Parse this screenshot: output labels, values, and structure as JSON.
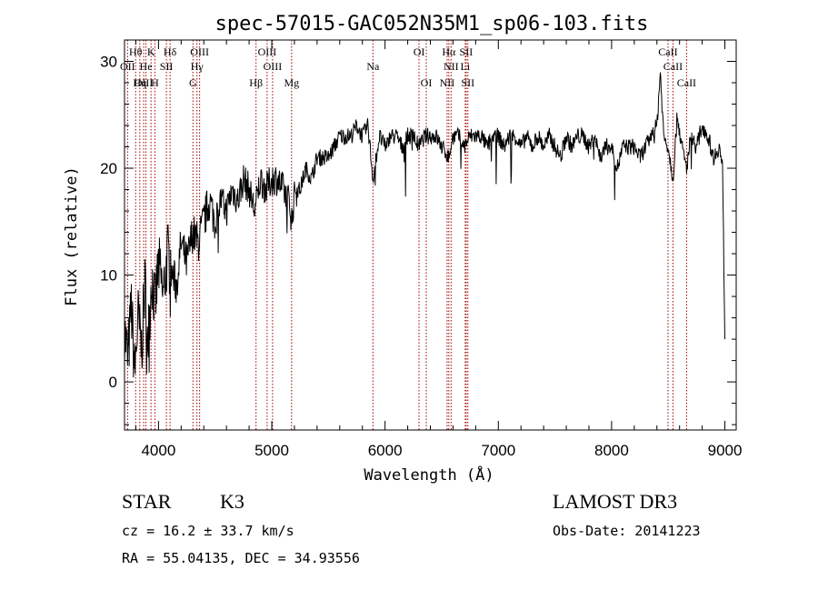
{
  "chart_data": {
    "type": "line",
    "title": "spec-57015-GAC052N35M1_sp06-103.fits",
    "xlabel": "Wavelength (Å)",
    "ylabel": "Flux (relative)",
    "xlim": [
      3700,
      9100
    ],
    "ylim": [
      -4.5,
      32
    ],
    "xticks": [
      4000,
      5000,
      6000,
      7000,
      8000,
      9000
    ],
    "yticks": [
      0,
      10,
      20,
      30
    ],
    "series": [
      {
        "name": "spectrum",
        "x": [
          3700,
          3730,
          3760,
          3790,
          3820,
          3850,
          3880,
          3910,
          3940,
          3970,
          4000,
          4040,
          4080,
          4120,
          4160,
          4200,
          4250,
          4300,
          4350,
          4400,
          4450,
          4500,
          4550,
          4600,
          4650,
          4700,
          4750,
          4800,
          4850,
          4900,
          4950,
          5000,
          5050,
          5100,
          5150,
          5180,
          5200,
          5250,
          5300,
          5350,
          5400,
          5450,
          5500,
          5550,
          5600,
          5650,
          5700,
          5750,
          5800,
          5850,
          5893,
          5950,
          6000,
          6050,
          6100,
          6150,
          6200,
          6250,
          6300,
          6350,
          6400,
          6450,
          6500,
          6563,
          6600,
          6650,
          6700,
          6750,
          6800,
          6850,
          6900,
          6950,
          7000,
          7050,
          7100,
          7150,
          7200,
          7250,
          7300,
          7350,
          7400,
          7450,
          7500,
          7550,
          7600,
          7650,
          7700,
          7750,
          7800,
          7850,
          7900,
          7950,
          8000,
          8050,
          8100,
          8150,
          8200,
          8250,
          8300,
          8350,
          8400,
          8430,
          8460,
          8500,
          8542,
          8580,
          8620,
          8662,
          8700,
          8750,
          8800,
          8850,
          8900,
          8950,
          8980,
          9000
        ],
        "y": [
          5,
          2,
          7,
          1,
          6,
          3,
          9,
          4,
          10,
          7,
          11,
          8,
          12,
          10,
          9,
          13,
          11,
          14,
          13,
          15,
          17,
          15,
          17,
          16,
          18,
          17,
          19,
          18,
          16,
          19,
          18,
          19,
          19,
          18,
          17,
          15,
          18,
          18,
          20,
          19,
          21,
          21,
          21,
          22,
          23,
          23,
          23,
          24,
          23,
          24,
          19,
          23,
          22,
          23,
          23,
          22,
          23,
          23,
          22,
          23,
          23,
          23,
          22,
          21,
          23,
          23,
          22,
          23,
          23,
          23,
          22,
          23,
          23,
          22,
          23,
          23,
          22,
          23,
          22,
          23,
          22,
          23,
          22,
          21,
          23,
          22,
          23,
          23,
          22,
          23,
          21,
          22,
          22,
          20,
          22,
          22,
          22,
          21,
          22,
          23,
          24,
          29,
          23,
          22,
          19,
          25,
          22,
          20,
          23,
          22,
          24,
          23,
          21,
          22,
          20,
          4
        ]
      }
    ],
    "lines": [
      {
        "name": "Hθ",
        "wl": 3798,
        "row": 0
      },
      {
        "name": "OII",
        "wl": 3727,
        "row": 1
      },
      {
        "name": "OIII",
        "wl": 3869,
        "row": 2
      },
      {
        "name": "Hη",
        "wl": 3835,
        "row": 2
      },
      {
        "name": "He",
        "wl": 3889,
        "row": 1
      },
      {
        "name": "K",
        "wl": 3934,
        "row": 0
      },
      {
        "name": "H",
        "wl": 3968,
        "row": 2
      },
      {
        "name": "SII",
        "wl": 4070,
        "row": 1
      },
      {
        "name": "Hδ",
        "wl": 4102,
        "row": 0
      },
      {
        "name": "OIII",
        "wl": 4363,
        "row": 0
      },
      {
        "name": "Hγ",
        "wl": 4340,
        "row": 1
      },
      {
        "name": "G",
        "wl": 4304,
        "row": 2
      },
      {
        "name": "Hβ",
        "wl": 4861,
        "row": 2
      },
      {
        "name": "OIII",
        "wl": 4959,
        "row": 0
      },
      {
        "name": "OIII",
        "wl": 5007,
        "row": 1
      },
      {
        "name": "Mg",
        "wl": 5175,
        "row": 2
      },
      {
        "name": "Na",
        "wl": 5893,
        "row": 1
      },
      {
        "name": "OI",
        "wl": 6300,
        "row": 0
      },
      {
        "name": "OI",
        "wl": 6364,
        "row": 2
      },
      {
        "name": "Hα",
        "wl": 6563,
        "row": 0
      },
      {
        "name": "NII",
        "wl": 6583,
        "row": 1
      },
      {
        "name": "NII",
        "wl": 6548,
        "row": 2
      },
      {
        "name": "SII",
        "wl": 6716,
        "row": 0
      },
      {
        "name": "Li",
        "wl": 6708,
        "row": 1
      },
      {
        "name": "SII",
        "wl": 6731,
        "row": 2
      },
      {
        "name": "CaII",
        "wl": 8498,
        "row": 0
      },
      {
        "name": "CaII",
        "wl": 8542,
        "row": 1
      },
      {
        "name": "CaII",
        "wl": 8662,
        "row": 2
      }
    ]
  },
  "info": {
    "object_type": "STAR",
    "subclass": "K3",
    "survey": "LAMOST DR3",
    "cz": "cz = 16.2 ± 33.7 km/s",
    "obs_date": "Obs-Date: 20141223",
    "radec": "RA =  55.04135, DEC =  34.93556"
  },
  "colors": {
    "line_marker": "#a00000",
    "spectrum": "#000000"
  }
}
